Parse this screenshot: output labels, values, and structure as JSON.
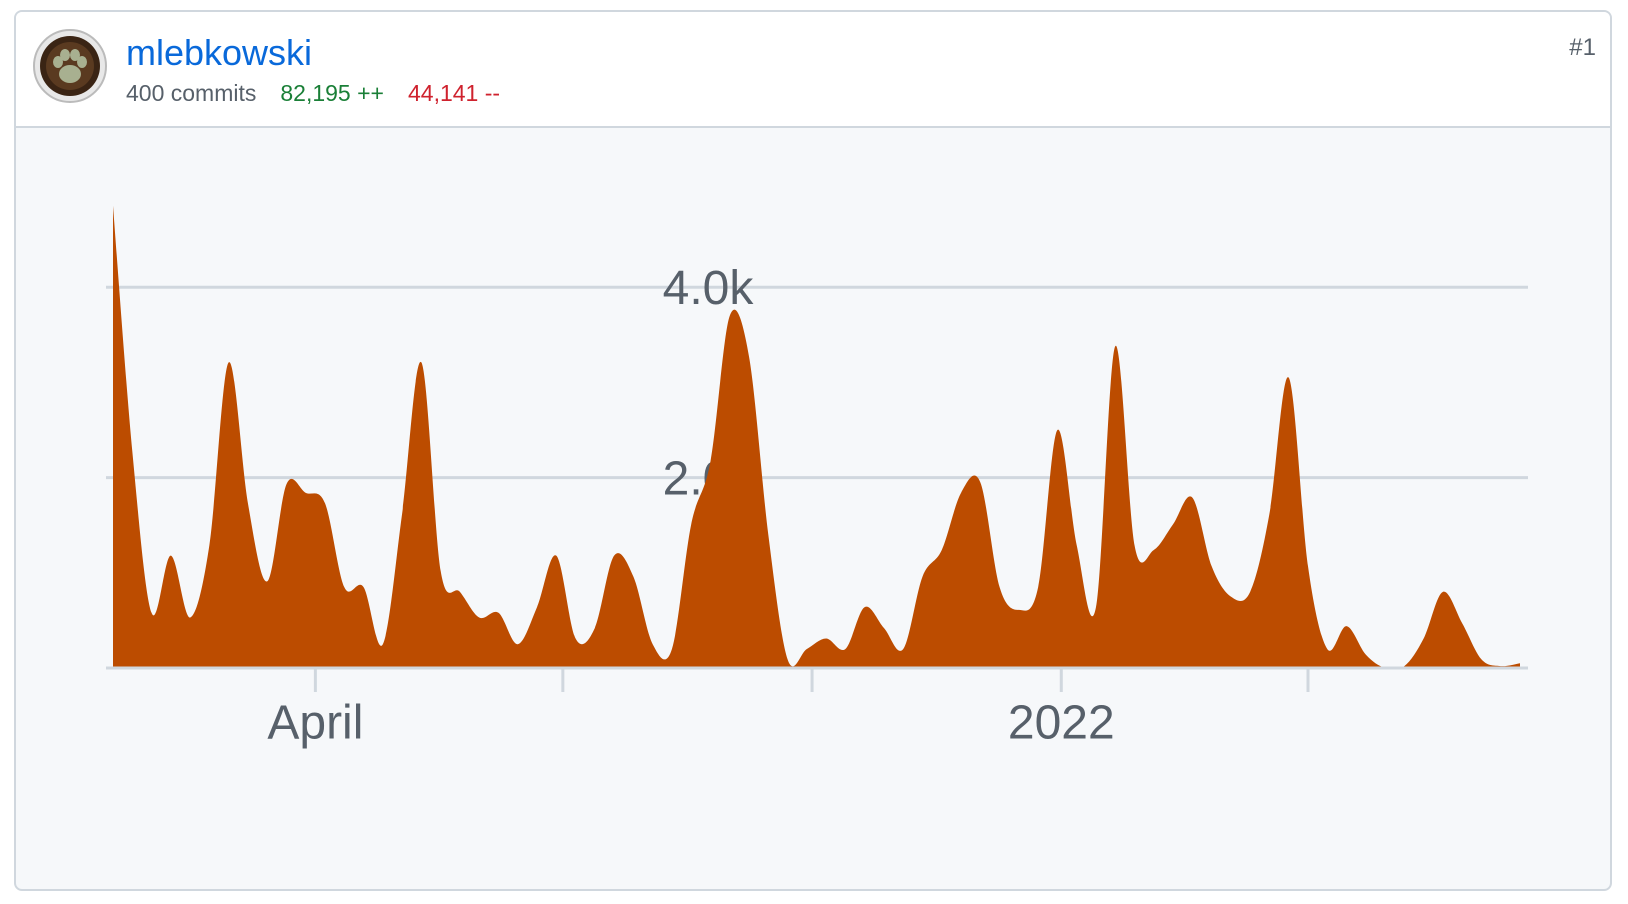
{
  "user": {
    "name": "mlebkowski",
    "commits": "400 commits",
    "additions": "82,195 ++",
    "deletions": "44,141 --",
    "rank": "#1"
  },
  "chart_data": {
    "type": "area",
    "color": "#bc4c00",
    "xlim": [
      0,
      73
    ],
    "xticks": [
      {
        "value": 10.5,
        "label": "April"
      },
      23.34,
      36.27,
      {
        "value": 49.2,
        "label": "2022"
      },
      62.0
    ],
    "ylim": [
      0,
      5000
    ],
    "yticks": [
      {
        "value": 2000,
        "label": "2.0k"
      },
      {
        "value": 4000,
        "label": "4.0k"
      }
    ],
    "grid": true,
    "values": [
      4855,
      2280,
      580,
      1180,
      530,
      1290,
      3210,
      1730,
      910,
      1930,
      1840,
      1730,
      850,
      850,
      250,
      1620,
      3210,
      1020,
      800,
      530,
      580,
      250,
      640,
      1180,
      310,
      420,
      1180,
      960,
      250,
      200,
      1510,
      2170,
      3700,
      3270,
      1400,
      90,
      200,
      310,
      200,
      640,
      420,
      200,
      960,
      1240,
      1840,
      1950,
      850,
      610,
      850,
      2500,
      1290,
      640,
      3380,
      1290,
      1240,
      1510,
      1790,
      1070,
      750,
      800,
      1620,
      3050,
      1070,
      200,
      440,
      140,
      0,
      20,
      310,
      800,
      470,
      90,
      20,
      50
    ]
  }
}
